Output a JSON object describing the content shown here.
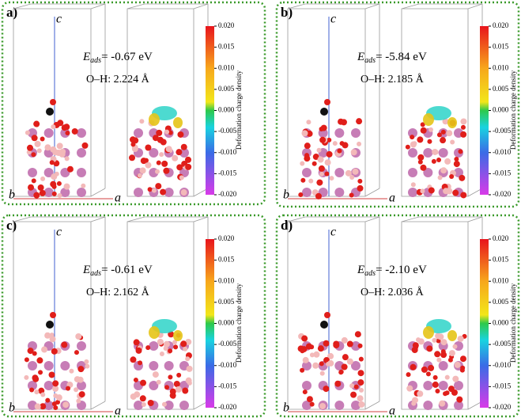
{
  "energy_symbol": "E",
  "energy_subscript": "ads",
  "axes": {
    "a": "a",
    "b": "b",
    "c": "c"
  },
  "colorbar": {
    "label": "Deformation charge density",
    "ticks": [
      "0.020",
      "0.015",
      "0.010",
      "0.005",
      "0.000",
      "-0.005",
      "-0.010",
      "-0.015",
      "-0.020"
    ]
  },
  "panels": [
    {
      "label": "a)",
      "energy": "= -0.67 eV",
      "bond": "O–H: 2.224 Å"
    },
    {
      "label": "b)",
      "energy": "= -5.84 eV",
      "bond": "O–H: 2.185 Å"
    },
    {
      "label": "c)",
      "energy": "= -0.61 eV",
      "bond": "O–H: 2.162 Å"
    },
    {
      "label": "d)",
      "energy": "= -2.10 eV",
      "bond": "O–H: 2.036 Å"
    }
  ]
}
